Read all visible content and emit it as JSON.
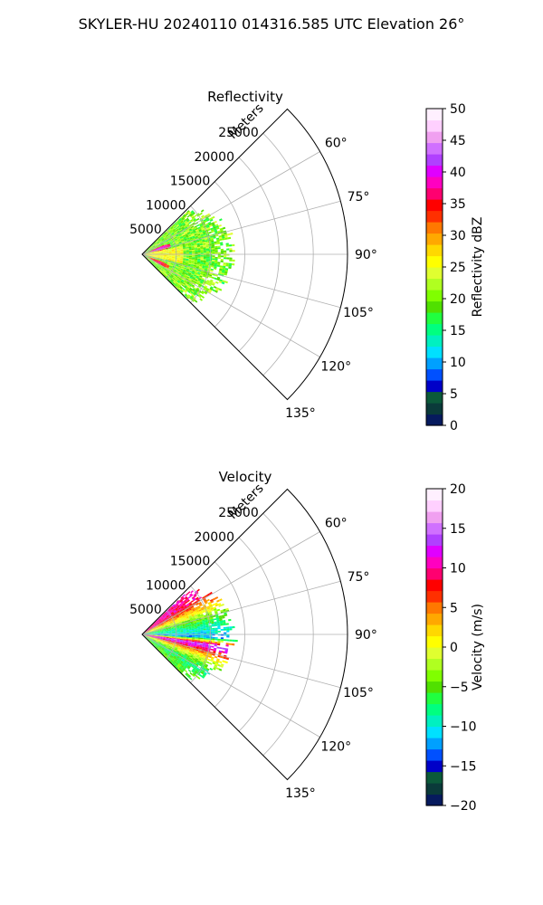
{
  "figure_title": "SKYLER-HU  20240110  014316.585 UTC Elevation 26°",
  "chart_data": [
    {
      "type": "heatmap",
      "subtype": "polar-sector (PPI radar scan)",
      "title": "Reflectivity",
      "radial_axis_label": "Meters",
      "radial_range": [
        0,
        30000
      ],
      "radial_ticks": [
        5000,
        10000,
        15000,
        20000,
        25000
      ],
      "radial_tick_labels": [
        "5000",
        "10000",
        "15000",
        "20000",
        "25000"
      ],
      "azimuth_range_deg": [
        45,
        135
      ],
      "azimuth_ticks_deg": [
        60,
        75,
        90,
        105,
        120,
        135
      ],
      "azimuth_tick_labels": [
        "60°",
        "75°",
        "90°",
        "105°",
        "120°",
        "135°"
      ],
      "grid": true,
      "colorbar": {
        "label": "Reflectivity dBZ",
        "range": [
          0,
          50
        ],
        "ticks": [
          0,
          5,
          10,
          15,
          20,
          25,
          30,
          35,
          40,
          45,
          50
        ],
        "tick_labels": [
          "0",
          "5",
          "10",
          "15",
          "20",
          "25",
          "30",
          "35",
          "40",
          "45",
          "50"
        ],
        "colors": [
          "#061a5e",
          "#0a3a3a",
          "#0b5a3a",
          "#0000c8",
          "#0050ff",
          "#00a0ff",
          "#00e0ff",
          "#00f0c0",
          "#00ff80",
          "#20ff40",
          "#50e000",
          "#80ff00",
          "#b0ff20",
          "#e0ff30",
          "#ffff00",
          "#ffd800",
          "#ffa800",
          "#ff7800",
          "#ff3000",
          "#ff0000",
          "#ff0070",
          "#ff00c0",
          "#e000ff",
          "#b040ff",
          "#d070ff",
          "#f0a0f0",
          "#ffd0ff",
          "#fff0ff"
        ]
      },
      "data_extent_m": 13000,
      "echo_features": [
        {
          "name": "background",
          "value_dbz": 18,
          "note": "green/yellow echo filling sector out to ~11-13 km"
        },
        {
          "name": "core",
          "value_dbz": 25,
          "note": "yellow band centered near 90° within ~6 km"
        },
        {
          "name": "north-max",
          "value_dbz": 40,
          "azimuth_deg": 72,
          "range_m": 2500
        },
        {
          "name": "south-max",
          "value_dbz": 36,
          "azimuth_deg": 115,
          "range_m": 2500
        }
      ]
    },
    {
      "type": "heatmap",
      "subtype": "polar-sector (PPI radar scan)",
      "title": "Velocity",
      "radial_axis_label": "Meters",
      "radial_range": [
        0,
        30000
      ],
      "radial_ticks": [
        5000,
        10000,
        15000,
        20000,
        25000
      ],
      "radial_tick_labels": [
        "5000",
        "10000",
        "15000",
        "20000",
        "25000"
      ],
      "azimuth_range_deg": [
        45,
        135
      ],
      "azimuth_ticks_deg": [
        60,
        75,
        90,
        105,
        120,
        135
      ],
      "azimuth_tick_labels": [
        "60°",
        "75°",
        "90°",
        "105°",
        "120°",
        "135°"
      ],
      "grid": true,
      "colorbar": {
        "label": "Velocity (m/s)",
        "range": [
          -20,
          20
        ],
        "ticks": [
          -20,
          -15,
          -10,
          -5,
          0,
          5,
          10,
          15,
          20
        ],
        "tick_labels": [
          "−20",
          "−15",
          "−10",
          "−5",
          "0",
          "5",
          "10",
          "15",
          "20"
        ],
        "colors": [
          "#061a5e",
          "#0a3a3a",
          "#0b5a3a",
          "#0000c8",
          "#0050ff",
          "#00a0ff",
          "#00e0ff",
          "#00f0c0",
          "#00ff80",
          "#20ff40",
          "#50e000",
          "#80ff00",
          "#b0ff20",
          "#e0ff30",
          "#ffff00",
          "#ffd800",
          "#ffa800",
          "#ff7800",
          "#ff3000",
          "#ff0000",
          "#ff0070",
          "#ff00c0",
          "#e000ff",
          "#b040ff",
          "#d070ff",
          "#f0a0f0",
          "#ffd0ff",
          "#fff0ff"
        ]
      },
      "data_extent_m": 13000,
      "velocity_profile": [
        {
          "azimuth_deg": 55,
          "velocity_ms": 10
        },
        {
          "azimuth_deg": 65,
          "velocity_ms": 3
        },
        {
          "azimuth_deg": 75,
          "velocity_ms": -5
        },
        {
          "azimuth_deg": 85,
          "velocity_ms": -9
        },
        {
          "azimuth_deg": 92,
          "velocity_ms": -12
        },
        {
          "azimuth_deg": 98,
          "velocity_ms": 14
        },
        {
          "azimuth_deg": 102,
          "velocity_ms": 10
        },
        {
          "azimuth_deg": 106,
          "velocity_ms": 4
        },
        {
          "azimuth_deg": 112,
          "velocity_ms": -2
        },
        {
          "azimuth_deg": 120,
          "velocity_ms": -8
        },
        {
          "azimuth_deg": 128,
          "velocity_ms": -5
        }
      ]
    }
  ]
}
